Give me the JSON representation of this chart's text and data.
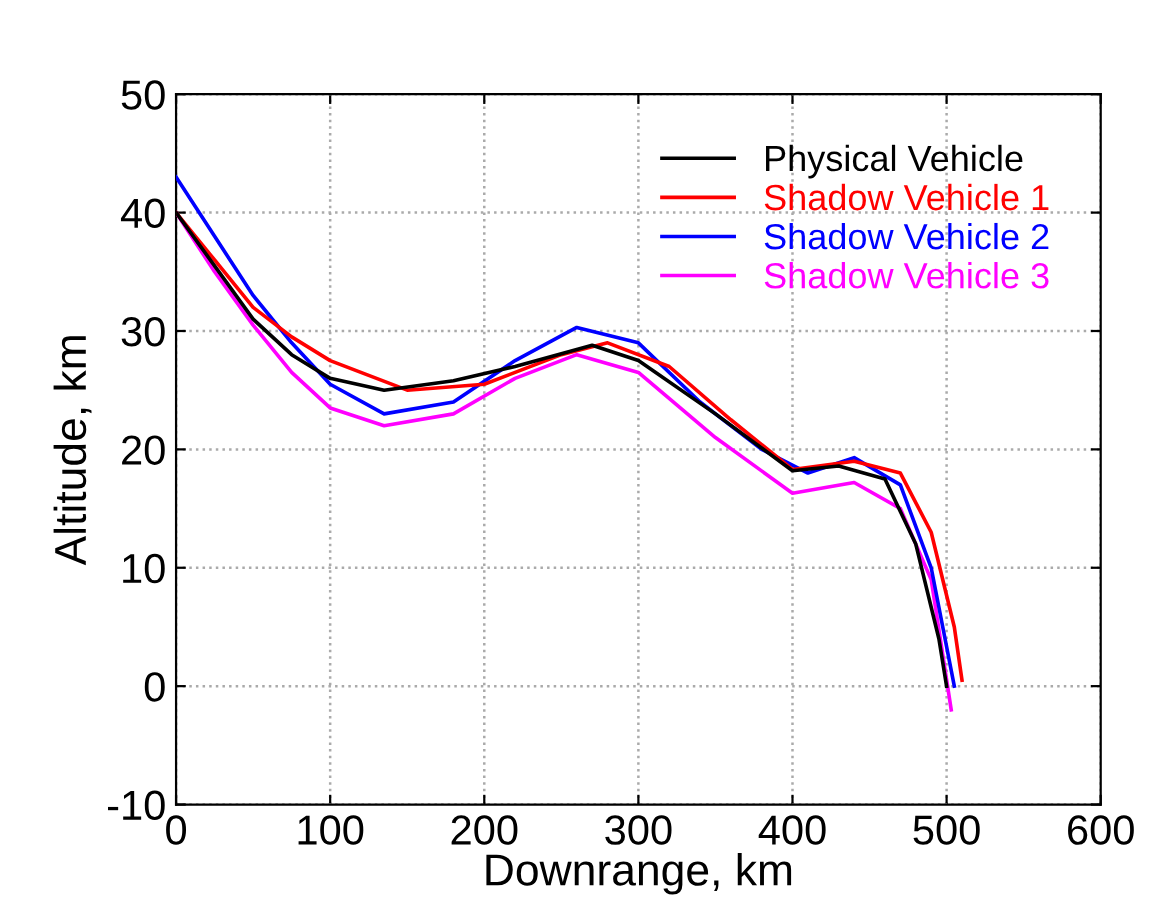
{
  "chart_data": {
    "type": "line",
    "xlabel": "Downrange, km",
    "ylabel": "Altitude, km",
    "xlim": [
      0,
      600
    ],
    "ylim": [
      -10,
      50
    ],
    "xticks": [
      0,
      100,
      200,
      300,
      400,
      500,
      600
    ],
    "yticks": [
      -10,
      0,
      10,
      20,
      30,
      40,
      50
    ],
    "grid": true,
    "legend": "top right",
    "marker": "none",
    "line_style": "solid",
    "series": [
      {
        "name": "Physical Vehicle",
        "color": "#000000",
        "x": [
          0,
          25,
          50,
          75,
          100,
          135,
          180,
          220,
          270,
          300,
          350,
          400,
          430,
          460,
          480,
          495,
          500
        ],
        "values": [
          40,
          35.5,
          31,
          28,
          26,
          25,
          25.8,
          27,
          28.8,
          27.5,
          23,
          18.2,
          18.6,
          17.5,
          12,
          4,
          0
        ]
      },
      {
        "name": "Shadow Vehicle 1",
        "color": "#ff0000",
        "x": [
          0,
          25,
          50,
          75,
          100,
          150,
          200,
          250,
          280,
          320,
          360,
          400,
          440,
          470,
          490,
          505,
          510
        ],
        "values": [
          40,
          36,
          32,
          29.5,
          27.5,
          25,
          25.5,
          28,
          29,
          27,
          22.5,
          18.3,
          19,
          18,
          13,
          5,
          0.5
        ]
      },
      {
        "name": "Shadow Vehicle 2",
        "color": "#0000ff",
        "x": [
          0,
          25,
          50,
          75,
          100,
          135,
          180,
          220,
          260,
          300,
          340,
          380,
          410,
          440,
          470,
          490,
          505
        ],
        "values": [
          43,
          38,
          33,
          29,
          25.5,
          23,
          24,
          27.5,
          30.3,
          29,
          24,
          20,
          18,
          19.3,
          17,
          10,
          0
        ]
      },
      {
        "name": "Shadow Vehicle 3",
        "color": "#ff00ff",
        "x": [
          0,
          25,
          50,
          75,
          100,
          135,
          180,
          220,
          260,
          300,
          350,
          400,
          440,
          470,
          490,
          503
        ],
        "values": [
          40,
          35,
          30.5,
          26.5,
          23.5,
          22,
          23,
          26,
          28,
          26.5,
          21,
          16.3,
          17.2,
          15,
          9,
          -2
        ]
      }
    ]
  }
}
